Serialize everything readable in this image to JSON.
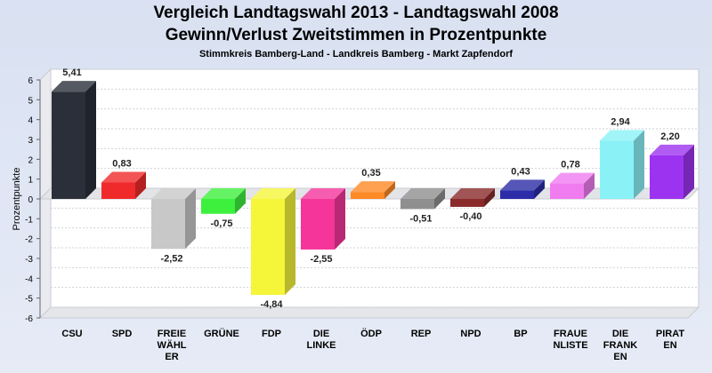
{
  "chart_data": {
    "type": "bar",
    "title": "Vergleich Landtagswahl 2013 - Landtagswahl 2008",
    "subtitle": "Gewinn/Verlust Zweitstimmen in Prozentpunkte",
    "subsubtitle": "Stimmkreis Bamberg-Land - Landkreis Bamberg - Markt Zapfendorf",
    "ylabel": "Prozentpunkte",
    "ylim": [
      -6,
      6
    ],
    "yticks": [
      "6",
      "5",
      "4",
      "3",
      "2",
      "1",
      "0",
      "-1",
      "-2",
      "-3",
      "-4",
      "-5",
      "-6"
    ],
    "categories": [
      [
        "CSU"
      ],
      [
        "SPD"
      ],
      [
        "FREIE",
        "WÄHL",
        "ER"
      ],
      [
        "GRÜNE"
      ],
      [
        "FDP"
      ],
      [
        "DIE",
        "LINKE"
      ],
      [
        "ÖDP"
      ],
      [
        "REP"
      ],
      [
        "NPD"
      ],
      [
        "BP"
      ],
      [
        "FRAUE",
        "NLISTE"
      ],
      [
        "DIE",
        "FRANK",
        "EN"
      ],
      [
        "PIRAT",
        "EN"
      ]
    ],
    "values": [
      5.41,
      0.83,
      -2.52,
      -0.75,
      -4.84,
      -2.55,
      0.35,
      -0.51,
      -0.4,
      0.43,
      0.78,
      2.94,
      2.2
    ],
    "value_labels": [
      "5,41",
      "0,83",
      "-2,52",
      "-0,75",
      "-4,84",
      "-2,55",
      "0,35",
      "-0,51",
      "-0,40",
      "0,43",
      "0,78",
      "2,94",
      "2,20"
    ],
    "colors": [
      "#2b2f3a",
      "#f02a2a",
      "#c8c8c8",
      "#3ef03e",
      "#f5f53a",
      "#f5359a",
      "#ff8a25",
      "#8f8f8f",
      "#8a2a2a",
      "#2c2ca8",
      "#f07cf0",
      "#8af2f6",
      "#9c33f0"
    ],
    "grid": true,
    "legend": "none"
  }
}
